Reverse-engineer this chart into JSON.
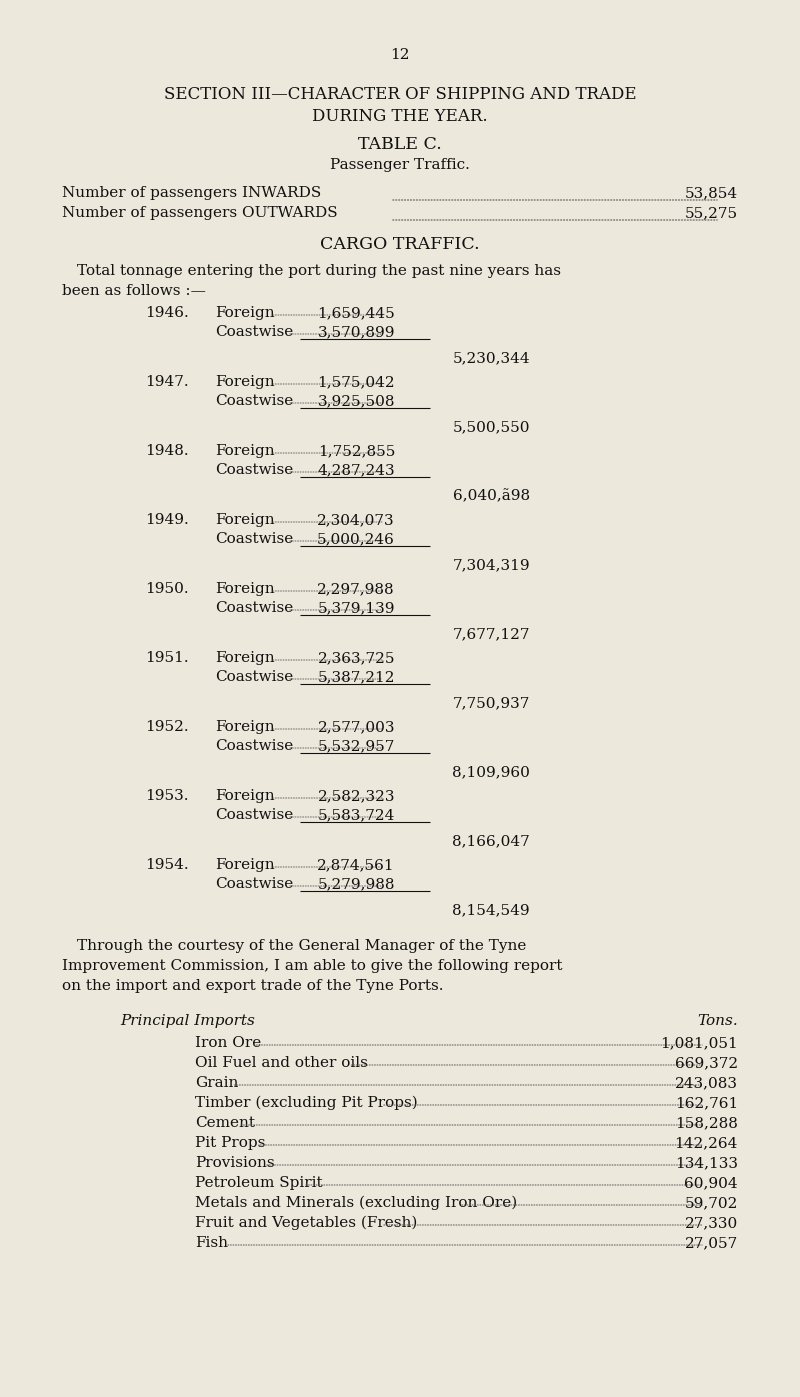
{
  "page_number": "12",
  "section_title_line1": "SECTION III—CHARACTER OF SHIPPING AND TRADE",
  "section_title_line2": "DURING THE YEAR.",
  "table_title": "TABLE C.",
  "passenger_subtitle": "Passenger Traffic.",
  "inwards_label": "Number of passengers INWARDS",
  "inwards_value": "53,854",
  "outwards_label": "Number of passengers OUTWARDS",
  "outwards_value": "55,275",
  "cargo_title": "CARGO TRAFFIC.",
  "cargo_intro_line1": "Total tonnage entering the port during the past nine years has",
  "cargo_intro_line2": "been as follows :—",
  "years": [
    {
      "year": "1946.",
      "foreign": "1,659,445",
      "coastwise": "3,570,899",
      "total": "5,230,344"
    },
    {
      "year": "1947.",
      "foreign": "1,575,042",
      "coastwise": "3,925,508",
      "total": "5,500,550"
    },
    {
      "year": "1948.",
      "foreign": "1,752,855",
      "coastwise": "4,287,243",
      "total": "6,040,ã98"
    },
    {
      "year": "1949.",
      "foreign": "2,304,073",
      "coastwise": "5,000,246",
      "total": "7,304,319"
    },
    {
      "year": "1950.",
      "foreign": "2,297,988",
      "coastwise": "5,379,139",
      "total": "7,677,127"
    },
    {
      "year": "1951.",
      "foreign": "2,363,725",
      "coastwise": "5,387,212",
      "total": "7,750,937"
    },
    {
      "year": "1952.",
      "foreign": "2,577,003",
      "coastwise": "5,532,957",
      "total": "8,109,960"
    },
    {
      "year": "1953.",
      "foreign": "2,582,323",
      "coastwise": "5,583,724",
      "total": "8,166,047"
    },
    {
      "year": "1954.",
      "foreign": "2,874,561",
      "coastwise": "5,279,988",
      "total": "8,154,549"
    }
  ],
  "through_line1": "Through the courtesy of the General Manager of the Tyne",
  "through_line2": "Improvement Commission, I am able to give the following report",
  "through_line3": "on the import and export trade of the Tyne Ports.",
  "imports_title": "Principal Imports",
  "imports_tons_label": "Tons.",
  "imports": [
    {
      "name": "Iron Ore",
      "value": "1,081,051"
    },
    {
      "name": "Oil Fuel and other oils",
      "value": "669,372"
    },
    {
      "name": "Grain",
      "value": "243,083"
    },
    {
      "name": "Timber (excluding Pit Props)",
      "value": "162,761"
    },
    {
      "name": "Cement",
      "value": "158,288"
    },
    {
      "name": "Pit Props",
      "value": "142,264"
    },
    {
      "name": "Provisions",
      "value": "134,133"
    },
    {
      "name": "Petroleum Spirit",
      "value": "60,904"
    },
    {
      "name": "Metals and Minerals (excluding Iron Ore)",
      "value": "59,702"
    },
    {
      "name": "Fruit and Vegetables (Fresh)",
      "value": "27,330"
    },
    {
      "name": "Fish",
      "value": "27,057"
    }
  ],
  "bg_color": "#ede8dc",
  "text_color": "#111111",
  "fs": 11.0,
  "fs_title": 12.5,
  "fs_section": 12.0,
  "fs_page": 11.0
}
